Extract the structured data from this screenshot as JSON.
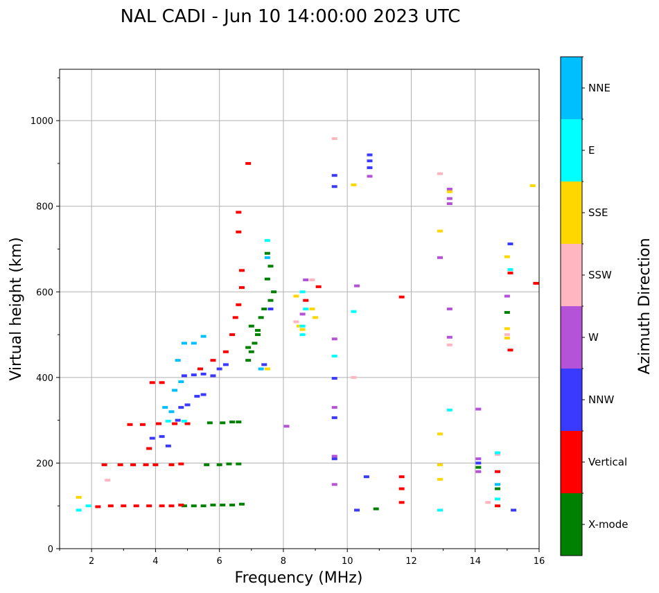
{
  "chart_data": {
    "type": "scatter",
    "title": "NAL CADI - Jun 10 14:00:00 2023 UTC",
    "xlabel": "Frequency (MHz)",
    "ylabel": "Virtual height (km)",
    "xlim": [
      1,
      16
    ],
    "ylim": [
      0,
      1120
    ],
    "xticks": [
      2,
      4,
      6,
      8,
      10,
      12,
      14,
      16
    ],
    "yticks": [
      0,
      200,
      400,
      600,
      800,
      1000
    ],
    "grid": true,
    "colorbar": {
      "label": "Azimuth Direction",
      "categories": [
        {
          "name": "X-mode",
          "color": "#008000"
        },
        {
          "name": "Vertical",
          "color": "#ff0000"
        },
        {
          "name": "NNW",
          "color": "#3a3aff"
        },
        {
          "name": "W",
          "color": "#b452d8"
        },
        {
          "name": "SSW",
          "color": "#ffb6c1"
        },
        {
          "name": "SSE",
          "color": "#ffd700"
        },
        {
          "name": "E",
          "color": "#00ffff"
        },
        {
          "name": "NNE",
          "color": "#00bfff"
        }
      ]
    },
    "series": [
      {
        "name": "X-mode",
        "points": [
          [
            4.9,
            100
          ],
          [
            5.2,
            100
          ],
          [
            5.5,
            100
          ],
          [
            5.8,
            102
          ],
          [
            6.1,
            102
          ],
          [
            6.4,
            102
          ],
          [
            6.7,
            104
          ],
          [
            5.6,
            196
          ],
          [
            6.0,
            196
          ],
          [
            6.3,
            198
          ],
          [
            6.6,
            198
          ],
          [
            5.7,
            294
          ],
          [
            6.1,
            294
          ],
          [
            6.4,
            296
          ],
          [
            6.6,
            296
          ],
          [
            6.9,
            440
          ],
          [
            7.0,
            460
          ],
          [
            7.1,
            480
          ],
          [
            7.2,
            500
          ],
          [
            7.0,
            520
          ],
          [
            7.3,
            540
          ],
          [
            7.4,
            560
          ],
          [
            7.6,
            580
          ],
          [
            7.7,
            600
          ],
          [
            7.5,
            630
          ],
          [
            7.6,
            660
          ],
          [
            7.5,
            690
          ],
          [
            7.2,
            510
          ],
          [
            6.9,
            470
          ],
          [
            10.9,
            93
          ],
          [
            14.1,
            190
          ],
          [
            14.7,
            140
          ],
          [
            15.0,
            552
          ]
        ]
      },
      {
        "name": "Vertical",
        "points": [
          [
            2.2,
            98
          ],
          [
            2.6,
            100
          ],
          [
            3.0,
            100
          ],
          [
            3.4,
            100
          ],
          [
            3.8,
            100
          ],
          [
            4.2,
            100
          ],
          [
            4.5,
            100
          ],
          [
            4.8,
            102
          ],
          [
            2.4,
            196
          ],
          [
            2.9,
            196
          ],
          [
            3.3,
            196
          ],
          [
            3.7,
            196
          ],
          [
            4.0,
            196
          ],
          [
            4.5,
            196
          ],
          [
            4.8,
            198
          ],
          [
            3.2,
            290
          ],
          [
            3.6,
            290
          ],
          [
            4.1,
            292
          ],
          [
            4.6,
            292
          ],
          [
            5.0,
            292
          ],
          [
            3.8,
            234
          ],
          [
            3.9,
            388
          ],
          [
            4.2,
            388
          ],
          [
            5.4,
            420
          ],
          [
            5.8,
            440
          ],
          [
            6.2,
            460
          ],
          [
            6.4,
            500
          ],
          [
            6.5,
            540
          ],
          [
            6.6,
            570
          ],
          [
            6.7,
            610
          ],
          [
            6.7,
            650
          ],
          [
            6.6,
            740
          ],
          [
            6.6,
            786
          ],
          [
            6.9,
            900
          ],
          [
            8.7,
            580
          ],
          [
            9.1,
            612
          ],
          [
            11.7,
            588
          ],
          [
            11.7,
            168
          ],
          [
            11.7,
            140
          ],
          [
            11.7,
            108
          ],
          [
            14.7,
            180
          ],
          [
            14.7,
            100
          ],
          [
            15.1,
            644
          ],
          [
            15.1,
            464
          ],
          [
            15.9,
            620
          ]
        ]
      },
      {
        "name": "NNW",
        "points": [
          [
            3.9,
            258
          ],
          [
            4.2,
            262
          ],
          [
            4.4,
            240
          ],
          [
            4.7,
            300
          ],
          [
            4.8,
            330
          ],
          [
            5.0,
            336
          ],
          [
            5.3,
            356
          ],
          [
            5.5,
            360
          ],
          [
            4.9,
            404
          ],
          [
            5.2,
            406
          ],
          [
            5.5,
            408
          ],
          [
            5.8,
            404
          ],
          [
            6.0,
            420
          ],
          [
            6.2,
            430
          ],
          [
            7.4,
            430
          ],
          [
            7.6,
            560
          ],
          [
            9.6,
            872
          ],
          [
            9.6,
            846
          ],
          [
            9.6,
            398
          ],
          [
            9.6,
            306
          ],
          [
            9.6,
            210
          ],
          [
            10.3,
            90
          ],
          [
            10.6,
            168
          ],
          [
            10.7,
            920
          ],
          [
            10.7,
            906
          ],
          [
            10.7,
            890
          ],
          [
            14.1,
            200
          ],
          [
            15.1,
            712
          ],
          [
            15.2,
            90
          ]
        ]
      },
      {
        "name": "W",
        "points": [
          [
            8.1,
            286
          ],
          [
            8.6,
            548
          ],
          [
            8.7,
            628
          ],
          [
            9.6,
            490
          ],
          [
            9.6,
            330
          ],
          [
            9.6,
            216
          ],
          [
            9.6,
            150
          ],
          [
            10.3,
            614
          ],
          [
            10.7,
            870
          ],
          [
            12.9,
            680
          ],
          [
            13.2,
            840
          ],
          [
            13.2,
            818
          ],
          [
            13.2,
            806
          ],
          [
            13.2,
            560
          ],
          [
            13.2,
            494
          ],
          [
            14.1,
            326
          ],
          [
            14.1,
            210
          ],
          [
            14.1,
            180
          ],
          [
            15.0,
            590
          ]
        ]
      },
      {
        "name": "SSW",
        "points": [
          [
            2.5,
            160
          ],
          [
            8.4,
            530
          ],
          [
            8.9,
            628
          ],
          [
            9.6,
            958
          ],
          [
            10.2,
            400
          ],
          [
            12.9,
            876
          ],
          [
            13.2,
            476
          ],
          [
            14.4,
            108
          ],
          [
            14.7,
            220
          ],
          [
            15.0,
            500
          ]
        ]
      },
      {
        "name": "SSE",
        "points": [
          [
            1.6,
            120
          ],
          [
            8.4,
            590
          ],
          [
            8.5,
            520
          ],
          [
            8.6,
            512
          ],
          [
            8.9,
            560
          ],
          [
            9.0,
            540
          ],
          [
            10.2,
            850
          ],
          [
            12.9,
            742
          ],
          [
            12.9,
            268
          ],
          [
            12.9,
            196
          ],
          [
            12.9,
            162
          ],
          [
            13.2,
            834
          ],
          [
            15.0,
            514
          ],
          [
            15.0,
            492
          ],
          [
            15.0,
            682
          ],
          [
            15.8,
            848
          ],
          [
            7.5,
            420
          ]
        ]
      },
      {
        "name": "E",
        "points": [
          [
            1.6,
            90
          ],
          [
            1.9,
            100
          ],
          [
            4.4,
            298
          ],
          [
            4.9,
            298
          ],
          [
            8.6,
            600
          ],
          [
            8.7,
            560
          ],
          [
            8.6,
            520
          ],
          [
            8.6,
            500
          ],
          [
            9.6,
            450
          ],
          [
            10.2,
            554
          ],
          [
            12.9,
            90
          ],
          [
            13.2,
            324
          ],
          [
            14.7,
            224
          ],
          [
            14.7,
            116
          ],
          [
            15.1,
            652
          ],
          [
            7.5,
            720
          ]
        ]
      },
      {
        "name": "NNE",
        "points": [
          [
            4.3,
            330
          ],
          [
            4.5,
            320
          ],
          [
            4.6,
            370
          ],
          [
            4.8,
            390
          ],
          [
            4.7,
            440
          ],
          [
            4.9,
            480
          ],
          [
            5.2,
            480
          ],
          [
            5.5,
            496
          ],
          [
            7.3,
            420
          ],
          [
            7.5,
            680
          ],
          [
            14.7,
            150
          ]
        ]
      }
    ]
  }
}
